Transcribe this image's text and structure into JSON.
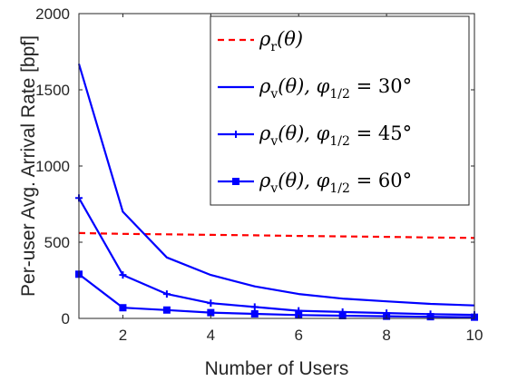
{
  "chart_data": {
    "type": "line",
    "xlabel": "Number of Users",
    "ylabel": "Per-user Avg. Arrival Rate [bpf]",
    "xlim": [
      1,
      10
    ],
    "ylim": [
      0,
      2000
    ],
    "xticks": [
      2,
      4,
      6,
      8,
      10
    ],
    "yticks": [
      0,
      500,
      1000,
      1500,
      2000
    ],
    "grid": false,
    "legend_position": "top-right",
    "x": [
      1,
      2,
      3,
      4,
      5,
      6,
      7,
      8,
      9,
      10
    ],
    "series": [
      {
        "legend": {
          "main": "ρ",
          "sub": "r",
          "arg": "(θ)",
          "phi": "",
          "phisub": "",
          "value": ""
        },
        "style": "dashed",
        "marker": "none",
        "color": "#ff0000",
        "values": [
          560,
          555,
          552,
          548,
          545,
          541,
          538,
          535,
          531,
          528
        ]
      },
      {
        "legend": {
          "main": "ρ",
          "sub": "v",
          "arg": "(θ), ",
          "phi": "φ",
          "phisub": "1/2",
          "value": " = 30°"
        },
        "style": "solid",
        "marker": "none",
        "color": "#0000ff",
        "values": [
          1670,
          700,
          400,
          285,
          210,
          160,
          130,
          112,
          95,
          85
        ]
      },
      {
        "legend": {
          "main": "ρ",
          "sub": "v",
          "arg": "(θ), ",
          "phi": "φ",
          "phisub": "1/2",
          "value": " = 45°"
        },
        "style": "solid",
        "marker": "plus",
        "color": "#0000ff",
        "values": [
          790,
          285,
          160,
          100,
          75,
          50,
          42,
          35,
          28,
          23
        ]
      },
      {
        "legend": {
          "main": "ρ",
          "sub": "v",
          "arg": "(θ), ",
          "phi": "φ",
          "phisub": "1/2",
          "value": " = 60°"
        },
        "style": "solid",
        "marker": "square",
        "color": "#0000ff",
        "values": [
          290,
          70,
          55,
          38,
          30,
          22,
          18,
          14,
          11,
          8
        ]
      }
    ]
  }
}
